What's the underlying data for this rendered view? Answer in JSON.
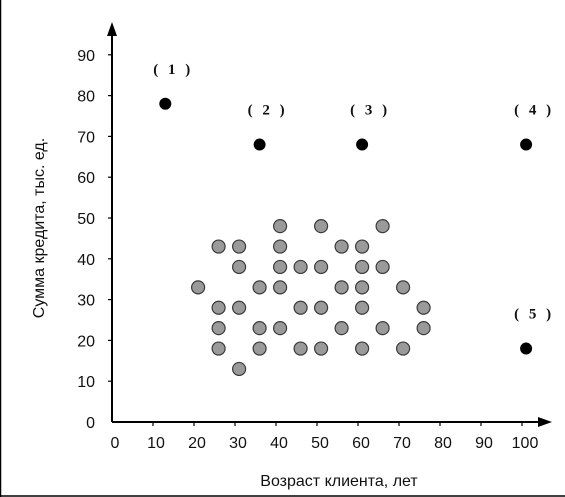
{
  "chart_data": {
    "type": "scatter",
    "title": "",
    "xlabel": "Возраст клиента, лет",
    "ylabel": "Сумма кредита, тыс. ед.",
    "xlim": [
      0,
      110
    ],
    "ylim": [
      0,
      100
    ],
    "x_ticks": [
      0,
      10,
      20,
      30,
      40,
      50,
      60,
      70,
      80,
      90,
      100
    ],
    "y_ticks": [
      0,
      10,
      20,
      30,
      40,
      50,
      60,
      70,
      80,
      90
    ],
    "grid": false,
    "legend": "none",
    "series": [
      {
        "kind": "cluster",
        "color": "#9a9a9a",
        "points": [
          {
            "x": 41,
            "y": 48
          },
          {
            "x": 51,
            "y": 48
          },
          {
            "x": 66,
            "y": 48
          },
          {
            "x": 26,
            "y": 43
          },
          {
            "x": 31,
            "y": 43
          },
          {
            "x": 41,
            "y": 43
          },
          {
            "x": 56,
            "y": 43
          },
          {
            "x": 61,
            "y": 43
          },
          {
            "x": 31,
            "y": 38
          },
          {
            "x": 41,
            "y": 38
          },
          {
            "x": 46,
            "y": 38
          },
          {
            "x": 51,
            "y": 38
          },
          {
            "x": 61,
            "y": 38
          },
          {
            "x": 66,
            "y": 38
          },
          {
            "x": 21,
            "y": 33
          },
          {
            "x": 36,
            "y": 33
          },
          {
            "x": 41,
            "y": 33
          },
          {
            "x": 56,
            "y": 33
          },
          {
            "x": 61,
            "y": 33
          },
          {
            "x": 71,
            "y": 33
          },
          {
            "x": 26,
            "y": 28
          },
          {
            "x": 31,
            "y": 28
          },
          {
            "x": 46,
            "y": 28
          },
          {
            "x": 51,
            "y": 28
          },
          {
            "x": 61,
            "y": 28
          },
          {
            "x": 76,
            "y": 28
          },
          {
            "x": 26,
            "y": 23
          },
          {
            "x": 36,
            "y": 23
          },
          {
            "x": 41,
            "y": 23
          },
          {
            "x": 56,
            "y": 23
          },
          {
            "x": 66,
            "y": 23
          },
          {
            "x": 76,
            "y": 23
          },
          {
            "x": 26,
            "y": 18
          },
          {
            "x": 36,
            "y": 18
          },
          {
            "x": 46,
            "y": 18
          },
          {
            "x": 51,
            "y": 18
          },
          {
            "x": 61,
            "y": 18
          },
          {
            "x": 71,
            "y": 18
          },
          {
            "x": 31,
            "y": 13
          }
        ]
      },
      {
        "kind": "outliers",
        "color": "#000000",
        "points": [
          {
            "x": 13,
            "y": 78,
            "label": "( 1 )"
          },
          {
            "x": 36,
            "y": 68,
            "label": "( 2 )"
          },
          {
            "x": 61,
            "y": 68,
            "label": "( 3 )"
          },
          {
            "x": 101,
            "y": 68,
            "label": "( 4 )"
          },
          {
            "x": 101,
            "y": 18,
            "label": "( 5 )"
          }
        ]
      }
    ]
  }
}
